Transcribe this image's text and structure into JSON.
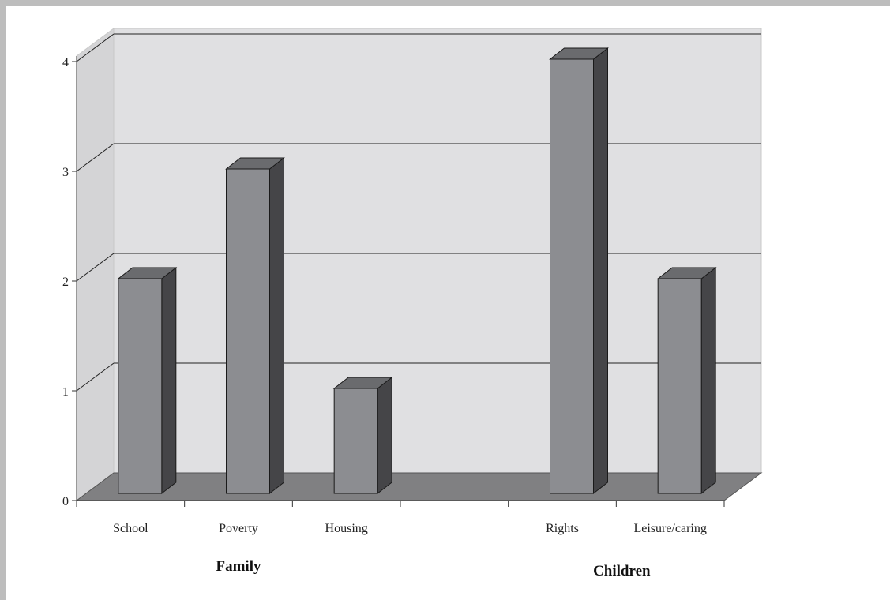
{
  "chart_data": {
    "type": "bar",
    "style": "3d-column",
    "categories": [
      "School",
      "Poverty",
      "Housing",
      "",
      "Rights",
      "Leisure/caring"
    ],
    "values": [
      2,
      3,
      1,
      null,
      4,
      2
    ],
    "groups": [
      {
        "label": "Family",
        "categories": [
          "School",
          "Poverty",
          "Housing"
        ]
      },
      {
        "label": "Children",
        "categories": [
          "Rights",
          "Leisure/caring"
        ]
      }
    ],
    "y_ticks": [
      "0",
      "1",
      "2",
      "3",
      "4"
    ],
    "ylim": [
      0,
      4
    ],
    "grid": true,
    "title": "",
    "xlabel": "",
    "ylabel": "",
    "colors": {
      "bar_front": "#8c8d91",
      "bar_side": "#454548",
      "bar_top": "#6a6b6e",
      "wall": "#e0e0e2",
      "floor": "#808082",
      "grid": "#222222"
    }
  }
}
